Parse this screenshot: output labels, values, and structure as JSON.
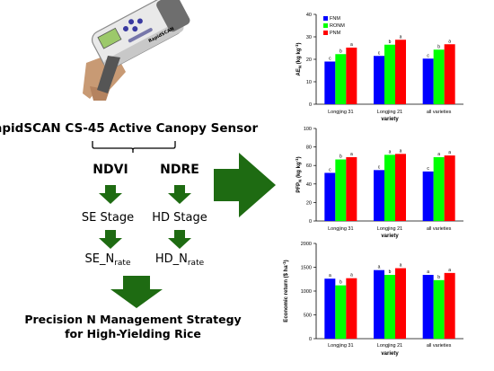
{
  "title": "RapidSCAN CS-45 Active Canopy Sensor",
  "indices": [
    "NDVI",
    "NDRE"
  ],
  "stages": [
    "SE Stage",
    "HD Stage"
  ],
  "rates": [
    {
      "base": "SE_N",
      "sub": "rate"
    },
    {
      "base": "HD_N",
      "sub": "rate"
    }
  ],
  "strategy": [
    "Precision N Management Strategy",
    "for High-Yielding Rice"
  ],
  "device": {
    "brand": "RapidSCAN"
  },
  "colors": {
    "arrow": "#1e6b12",
    "FNM": "#0000ff",
    "RONM": "#00ff00",
    "PNM": "#ff0000"
  },
  "chart_data": [
    {
      "type": "bar",
      "categories": [
        "Longjing 31",
        "Longjing 21",
        "all varieties"
      ],
      "series": [
        {
          "name": "FNM",
          "values": [
            19.0,
            21.5,
            20.3
          ]
        },
        {
          "name": "RONM",
          "values": [
            22.3,
            26.5,
            24.3
          ]
        },
        {
          "name": "PNM",
          "values": [
            25.2,
            28.7,
            26.7
          ]
        }
      ],
      "letters": [
        [
          "c",
          "b",
          "a"
        ],
        [
          "c",
          "b",
          "a"
        ],
        [
          "c",
          "b",
          "a"
        ]
      ],
      "ylabel": "AE_N (kg kg-1)",
      "ylabel_parts": [
        "AE",
        "N",
        " (kg kg",
        "-1",
        ")"
      ],
      "xlabel": "variety",
      "ylim": [
        0,
        40
      ],
      "yticks": [
        "0",
        "10",
        "20",
        "30",
        "40"
      ],
      "legend": "top-left",
      "grid": false
    },
    {
      "type": "bar",
      "categories": [
        "Longjing 31",
        "Longjing 21",
        "all varieties"
      ],
      "series": [
        {
          "name": "FNM",
          "values": [
            52,
            55,
            53.5
          ]
        },
        {
          "name": "RONM",
          "values": [
            66.5,
            71.5,
            69
          ]
        },
        {
          "name": "PNM",
          "values": [
            69,
            72.5,
            70.8
          ]
        }
      ],
      "letters": [
        [
          "c",
          "b",
          "a"
        ],
        [
          "c",
          "a",
          "a"
        ],
        [
          "c",
          "a",
          "a"
        ]
      ],
      "ylabel": "PFP_N (kg kg-1)",
      "ylabel_parts": [
        "PFP",
        "N",
        " (kg kg",
        "-1",
        ")"
      ],
      "xlabel": "variety",
      "ylim": [
        0,
        100
      ],
      "yticks": [
        "0",
        "20",
        "40",
        "60",
        "80",
        "100"
      ],
      "grid": false
    },
    {
      "type": "bar",
      "categories": [
        "Longjing 31",
        "Longjing 21",
        "all varieties"
      ],
      "series": [
        {
          "name": "FNM",
          "values": [
            1260,
            1440,
            1340
          ]
        },
        {
          "name": "RONM",
          "values": [
            1120,
            1340,
            1230
          ]
        },
        {
          "name": "PNM",
          "values": [
            1270,
            1480,
            1380
          ]
        }
      ],
      "letters": [
        [
          "a",
          "b",
          "a"
        ],
        [
          "a",
          "b",
          "a"
        ],
        [
          "a",
          "b",
          "a"
        ]
      ],
      "ylabel": "Economic return ($ ha-1)",
      "ylabel_parts": [
        "Economic return ($ ha",
        "-1",
        ")"
      ],
      "xlabel": "variety",
      "ylim": [
        0,
        2000
      ],
      "yticks": [
        "0",
        "500",
        "1000",
        "1500",
        "2000"
      ],
      "grid": false
    }
  ]
}
